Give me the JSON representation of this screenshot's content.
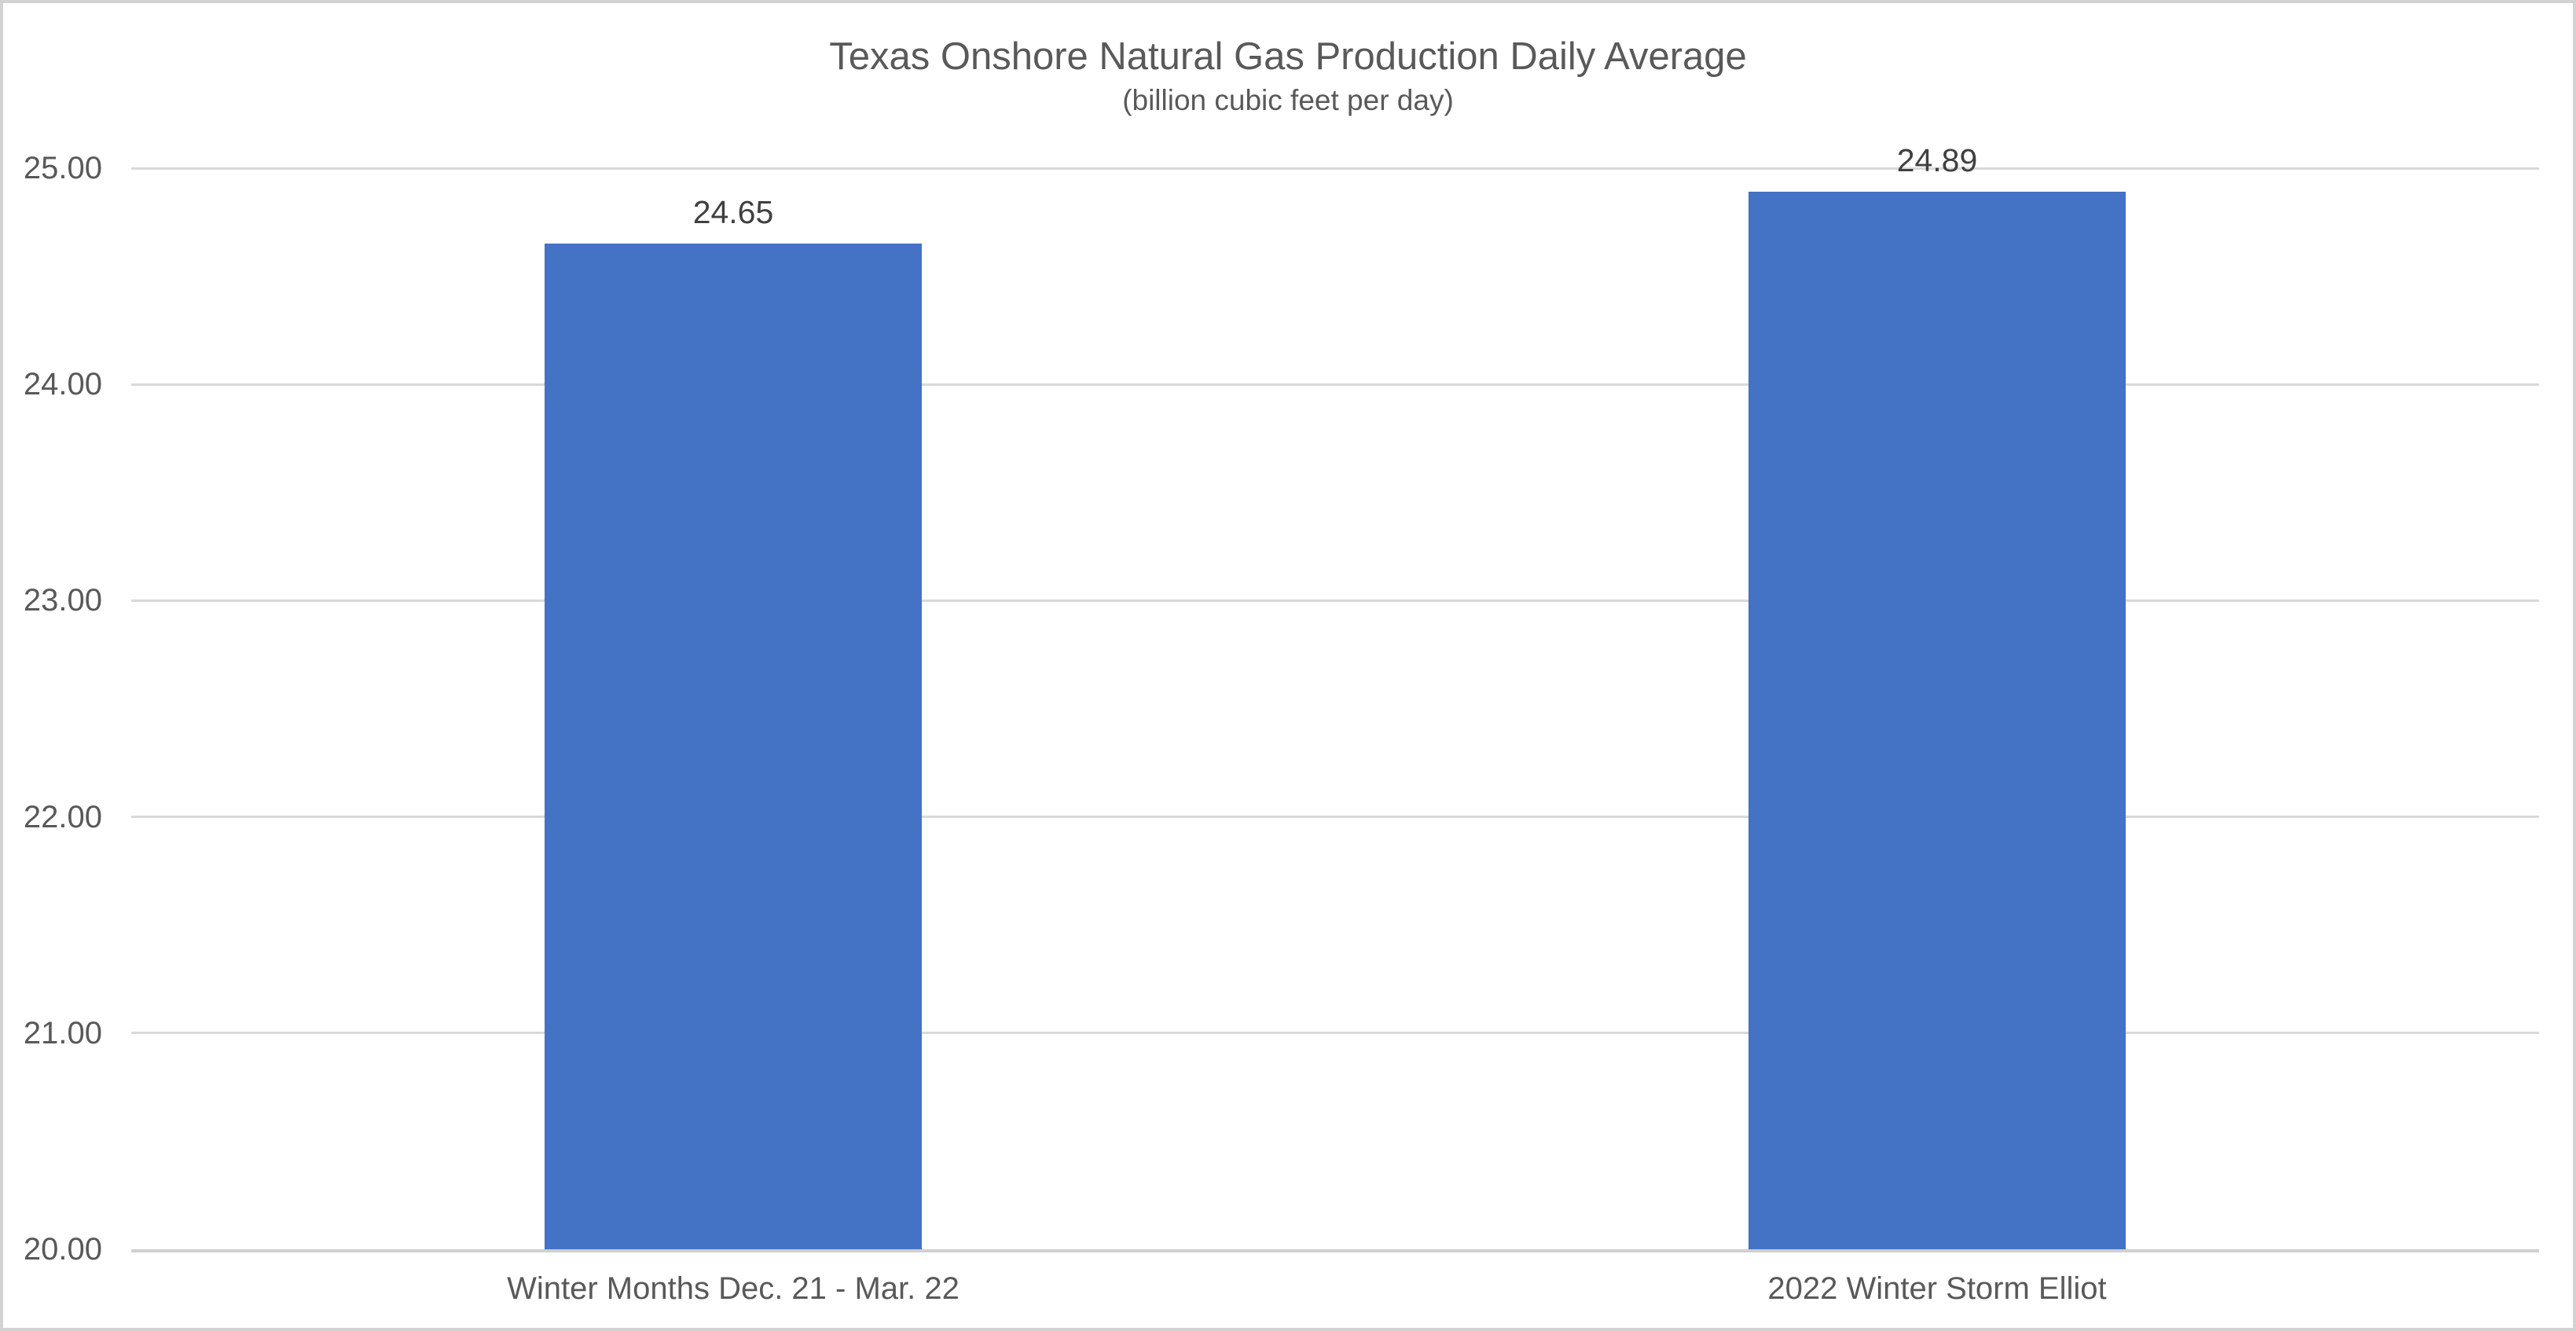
{
  "chart_data": {
    "type": "bar",
    "title": "Texas Onshore Natural Gas Production Daily Average",
    "subtitle": "(billion cubic feet per day)",
    "categories": [
      "Winter Months Dec. 21 - Mar. 22",
      "2022 Winter Storm Elliot"
    ],
    "values": [
      24.65,
      24.89
    ],
    "data_labels": [
      "24.65",
      "24.89"
    ],
    "xlabel": "",
    "ylabel": "",
    "ylim": [
      20,
      25
    ],
    "ytick_interval": 1,
    "ytick_labels": [
      "20.00",
      "21.00",
      "22.00",
      "23.00",
      "24.00",
      "25.00"
    ],
    "grid": true,
    "legend": "none",
    "colors": {
      "bar": "#4472C4",
      "gridline": "#D9D9D9",
      "axis_line": "#D0D0D0",
      "tick_label": "#595959",
      "category_label": "#595959",
      "title": "#595959",
      "data_label": "#404040",
      "border": "#D2D2D2",
      "background": "#FFFFFF"
    }
  }
}
